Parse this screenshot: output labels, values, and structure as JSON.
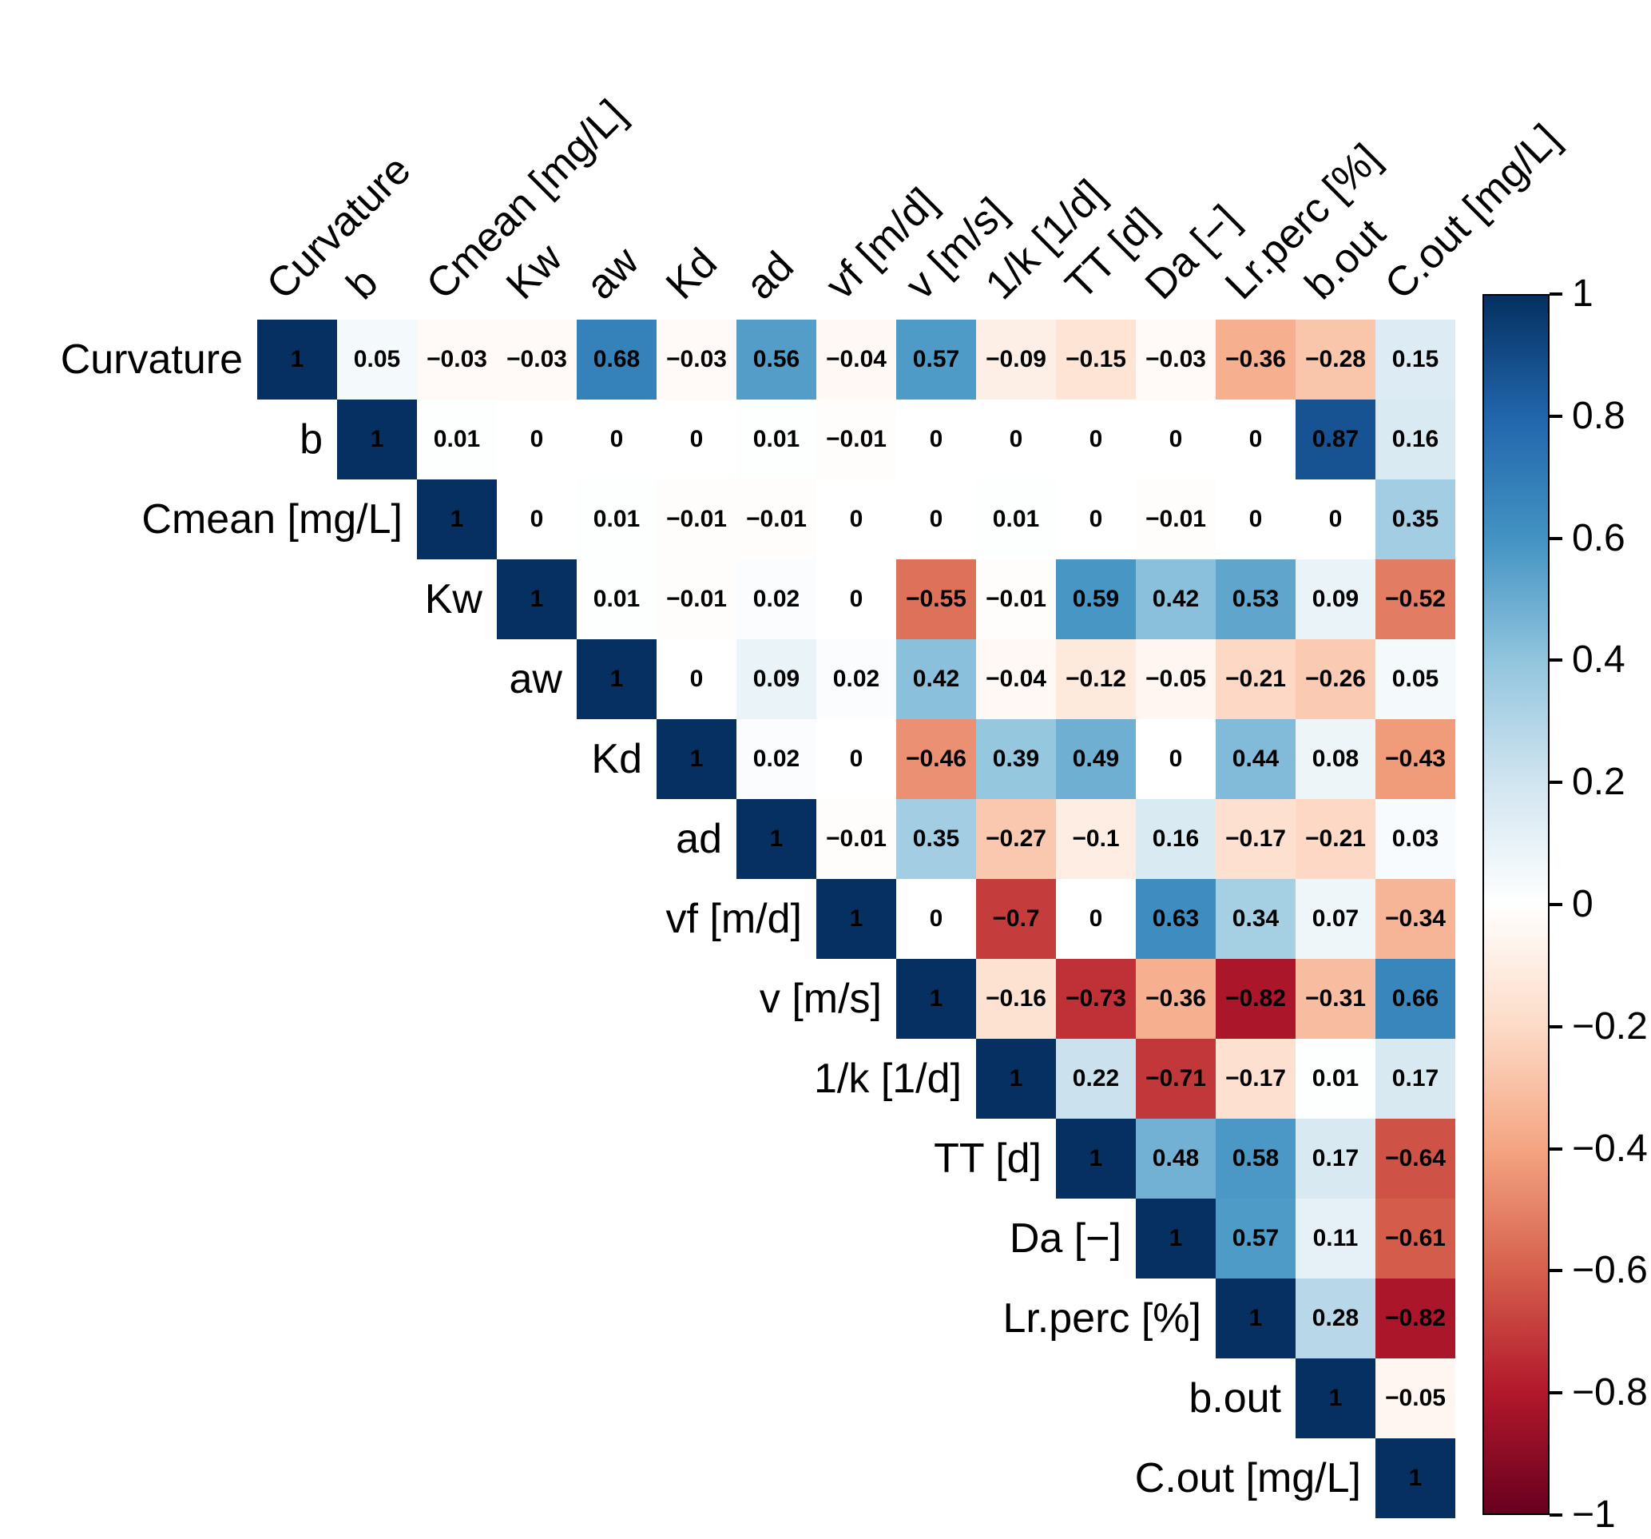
{
  "chart_data": {
    "type": "heatmap",
    "title": "",
    "subtitle": "",
    "description": "Upper-triangular correlation matrix with diverging red-white-blue colormap and right-hand colorbar",
    "variables": [
      "Curvature",
      "b",
      "Cmean [mg/L]",
      "Kw",
      "aw",
      "Kd",
      "ad",
      "vf [m/d]",
      "v [m/s]",
      "1/k [1/d]",
      "TT [d]",
      "Da [−]",
      "Lr.perc [%]",
      "b.out",
      "C.out [mg/L]"
    ],
    "matrix_upper_triangle": [
      [
        1,
        0.05,
        -0.03,
        -0.03,
        0.68,
        -0.03,
        0.56,
        -0.04,
        0.57,
        -0.09,
        -0.15,
        -0.03,
        -0.36,
        -0.28,
        0.15
      ],
      [
        1,
        0.01,
        0,
        0,
        0,
        0.01,
        -0.01,
        0,
        0,
        0,
        0,
        0,
        0.87,
        0.16
      ],
      [
        1,
        0,
        0.01,
        -0.01,
        -0.01,
        0,
        0,
        0.01,
        0,
        -0.01,
        0,
        0,
        0.35
      ],
      [
        1,
        0.01,
        -0.01,
        0.02,
        0,
        -0.55,
        -0.01,
        0.59,
        0.42,
        0.53,
        0.09,
        -0.52
      ],
      [
        1,
        0,
        0.09,
        0.02,
        0.42,
        -0.04,
        -0.12,
        -0.05,
        -0.21,
        -0.26,
        0.05
      ],
      [
        1,
        0.02,
        0,
        -0.46,
        0.39,
        0.49,
        0,
        0.44,
        0.08,
        -0.43
      ],
      [
        1,
        -0.01,
        0.35,
        -0.27,
        -0.1,
        0.16,
        -0.17,
        -0.21,
        0.03
      ],
      [
        1,
        0,
        -0.7,
        0,
        0.63,
        0.34,
        0.07,
        -0.34
      ],
      [
        1,
        -0.16,
        -0.73,
        -0.36,
        -0.82,
        -0.31,
        0.66
      ],
      [
        1,
        0.22,
        -0.71,
        -0.17,
        0.01,
        0.17
      ],
      [
        1,
        0.48,
        0.58,
        0.17,
        -0.64
      ],
      [
        1,
        0.57,
        0.11,
        -0.61
      ],
      [
        1,
        0.28,
        -0.82
      ],
      [
        1,
        -0.05
      ],
      [
        1
      ]
    ],
    "legend": {
      "position": "right",
      "range": [
        -1,
        1
      ],
      "ticks": [
        1,
        0.8,
        0.6,
        0.4,
        0.2,
        0,
        -0.2,
        -0.4,
        -0.6,
        -0.8,
        -1
      ]
    },
    "palette": {
      "name": "RdBu-diverging",
      "stops": [
        {
          "pos": -1.0,
          "color": "#67001f"
        },
        {
          "pos": -0.8,
          "color": "#b2182b"
        },
        {
          "pos": -0.6,
          "color": "#d6604d"
        },
        {
          "pos": -0.4,
          "color": "#f4a582"
        },
        {
          "pos": -0.2,
          "color": "#fddbc7"
        },
        {
          "pos": 0.0,
          "color": "#ffffff"
        },
        {
          "pos": 0.2,
          "color": "#d1e5f0"
        },
        {
          "pos": 0.4,
          "color": "#92c5de"
        },
        {
          "pos": 0.6,
          "color": "#4393c3"
        },
        {
          "pos": 0.8,
          "color": "#2166ac"
        },
        {
          "pos": 1.0,
          "color": "#053061"
        }
      ],
      "value_text_color": "#000000"
    },
    "grid": false
  }
}
